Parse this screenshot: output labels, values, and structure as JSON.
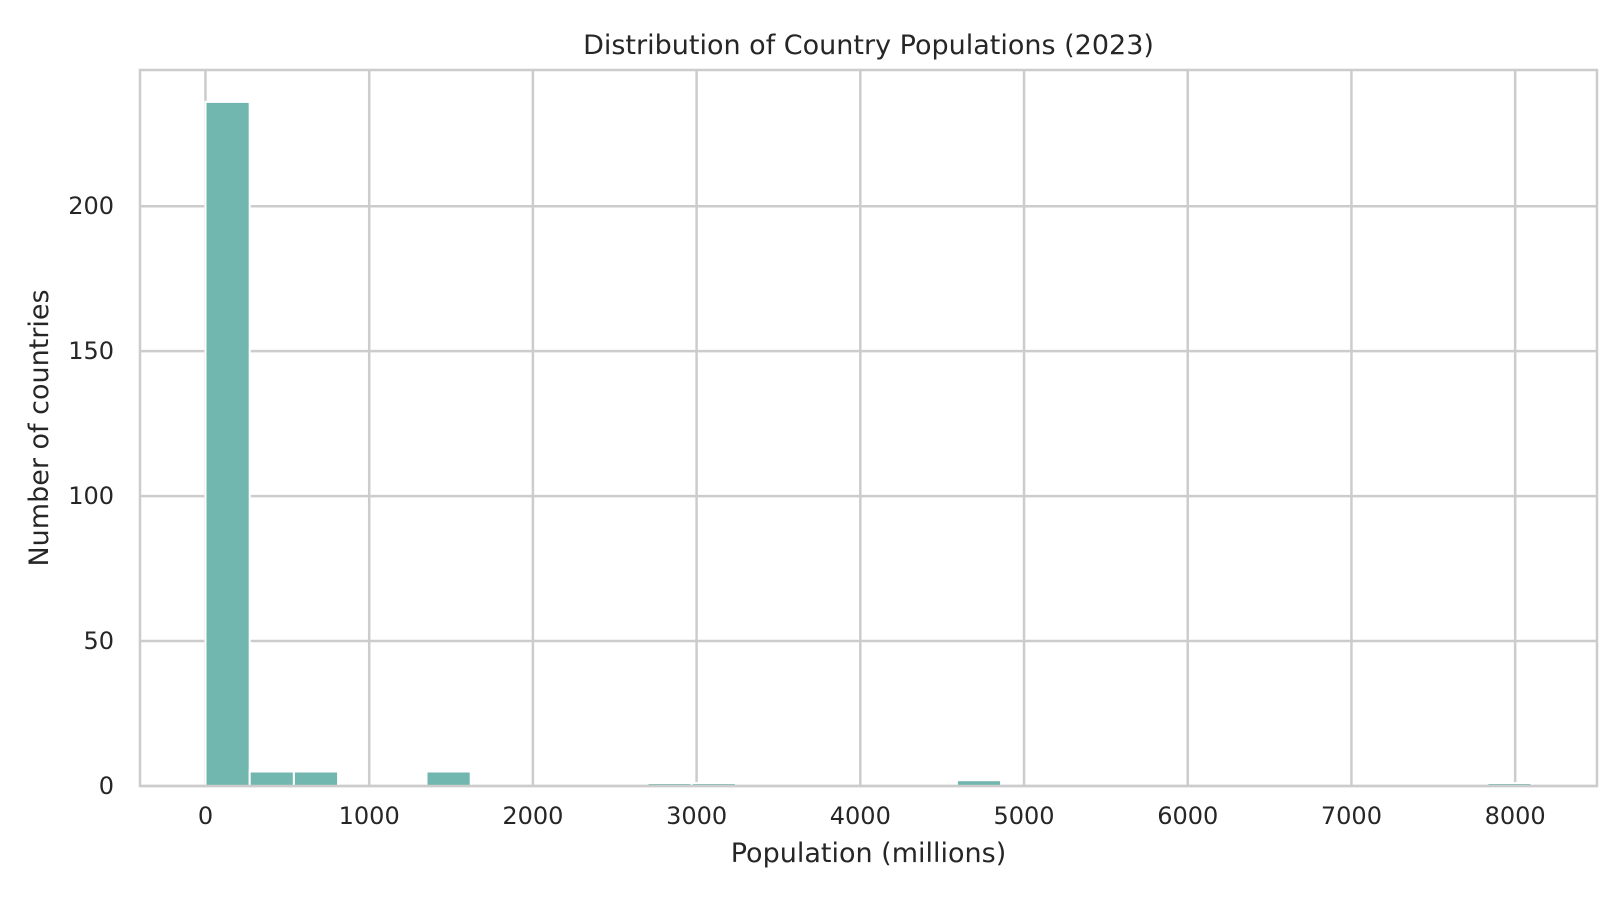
{
  "chart_data": {
    "type": "bar",
    "title": "Distribution of Country Populations (2023)",
    "xlabel": "Population (millions)",
    "ylabel": "Number of countries",
    "xlim": [
      -400,
      8500
    ],
    "ylim": [
      0,
      247
    ],
    "xticks": [
      0,
      1000,
      2000,
      3000,
      4000,
      5000,
      6000,
      7000,
      8000
    ],
    "yticks": [
      0,
      50,
      100,
      150,
      200
    ],
    "grid": true,
    "bar_color": "#72b6b0",
    "bins": [
      {
        "x0": 0,
        "x1": 270,
        "count": 236
      },
      {
        "x0": 270,
        "x1": 540,
        "count": 5
      },
      {
        "x0": 540,
        "x1": 810,
        "count": 5
      },
      {
        "x0": 1350,
        "x1": 1620,
        "count": 5
      },
      {
        "x0": 2700,
        "x1": 2970,
        "count": 1
      },
      {
        "x0": 2970,
        "x1": 3240,
        "count": 1
      },
      {
        "x0": 4590,
        "x1": 4860,
        "count": 2
      },
      {
        "x0": 7830,
        "x1": 8100,
        "count": 1
      }
    ]
  }
}
